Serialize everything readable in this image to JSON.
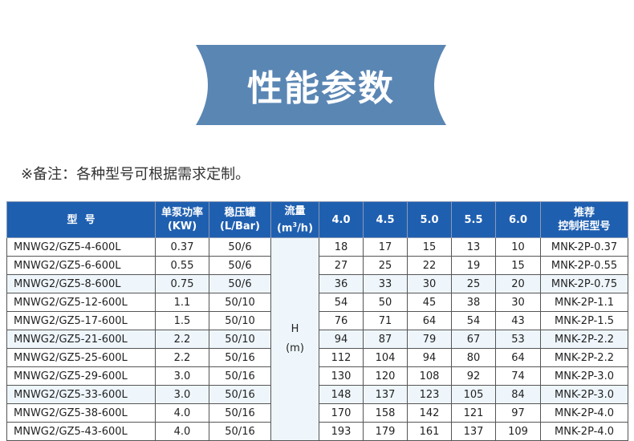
{
  "banner": {
    "title": "性能参数",
    "color": "#5a86b4"
  },
  "note": "※备注：各种型号可根据需求定制。",
  "table": {
    "header_color": "#1f5fb0",
    "alt_row_color": "#eef6fc",
    "headers": {
      "model": "型  号",
      "power_l1": "单泵功率",
      "power_l2": "(KW)",
      "tank_l1": "稳压罐",
      "tank_l2": "(L/Bar)",
      "flow_l1": "流量",
      "flow_l2a": "(m",
      "flow_sup": "3",
      "flow_l2b": "/h)",
      "f1": "4.0",
      "f2": "4.5",
      "f3": "5.0",
      "f4": "5.5",
      "f5": "6.0",
      "cab_l1": "推荐",
      "cab_l2": "控制柜型号"
    },
    "h_label": "H",
    "h_unit": "(m)",
    "rows": [
      {
        "model": "MNWG2/GZ5-4-600L",
        "power": "0.37",
        "tank": "50/6",
        "h": [
          "18",
          "17",
          "15",
          "13",
          "10"
        ],
        "cabinet": "MNK-2P-0.37"
      },
      {
        "model": "MNWG2/GZ5-6-600L",
        "power": "0.55",
        "tank": "50/6",
        "h": [
          "27",
          "25",
          "22",
          "19",
          "15"
        ],
        "cabinet": "MNK-2P-0.55"
      },
      {
        "model": "MNWG2/GZ5-8-600L",
        "power": "0.75",
        "tank": "50/6",
        "h": [
          "36",
          "33",
          "30",
          "25",
          "20"
        ],
        "cabinet": "MNK-2P-0.75"
      },
      {
        "model": "MNWG2/GZ5-12-600L",
        "power": "1.1",
        "tank": "50/10",
        "h": [
          "54",
          "50",
          "45",
          "38",
          "30"
        ],
        "cabinet": "MNK-2P-1.1"
      },
      {
        "model": "MNWG2/GZ5-17-600L",
        "power": "1.5",
        "tank": "50/10",
        "h": [
          "76",
          "71",
          "64",
          "54",
          "43"
        ],
        "cabinet": "MNK-2P-1.5"
      },
      {
        "model": "MNWG2/GZ5-21-600L",
        "power": "2.2",
        "tank": "50/10",
        "h": [
          "94",
          "87",
          "79",
          "67",
          "53"
        ],
        "cabinet": "MNK-2P-2.2"
      },
      {
        "model": "MNWG2/GZ5-25-600L",
        "power": "2.2",
        "tank": "50/16",
        "h": [
          "112",
          "104",
          "94",
          "80",
          "64"
        ],
        "cabinet": "MNK-2P-2.2"
      },
      {
        "model": "MNWG2/GZ5-29-600L",
        "power": "3.0",
        "tank": "50/16",
        "h": [
          "130",
          "120",
          "108",
          "92",
          "74"
        ],
        "cabinet": "MNK-2P-3.0"
      },
      {
        "model": "MNWG2/GZ5-33-600L",
        "power": "3.0",
        "tank": "50/16",
        "h": [
          "148",
          "137",
          "123",
          "105",
          "84"
        ],
        "cabinet": "MNK-2P-3.0"
      },
      {
        "model": "MNWG2/GZ5-38-600L",
        "power": "4.0",
        "tank": "50/16",
        "h": [
          "170",
          "158",
          "142",
          "121",
          "97"
        ],
        "cabinet": "MNK-2P-4.0"
      },
      {
        "model": "MNWG2/GZ5-43-600L",
        "power": "4.0",
        "tank": "50/16",
        "h": [
          "193",
          "179",
          "161",
          "137",
          "109"
        ],
        "cabinet": "MNK-2P-4.0"
      }
    ]
  }
}
